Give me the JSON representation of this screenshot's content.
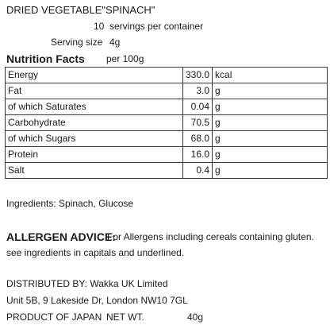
{
  "product_title": "DRIED VEGETABLE\"SPINACH\"",
  "servings": {
    "count": "10",
    "label": "servings per container"
  },
  "serving_size": {
    "label": "Serving size",
    "value": "4g"
  },
  "nutrition": {
    "heading": "Nutrition Facts",
    "per": "per 100g",
    "rows": [
      {
        "name": "Energy",
        "value": "330.0",
        "unit": "kcal"
      },
      {
        "name": "Fat",
        "value": "3.0",
        "unit": "g"
      },
      {
        "name": "of which Saturates",
        "value": "0.04",
        "unit": "g"
      },
      {
        "name": "Carbohydrate",
        "value": "70.5",
        "unit": "g"
      },
      {
        "name": "of which Sugars",
        "value": "68.0",
        "unit": "g"
      },
      {
        "name": "Protein",
        "value": "16.0",
        "unit": "g"
      },
      {
        "name": "Salt",
        "value": "0.4",
        "unit": "g"
      }
    ]
  },
  "ingredients": "Ingredients: Spinach, Glucose",
  "allergen": {
    "heading": "ALLERGEN ADVICE:",
    "line1": "For Allergens including cereals containing gluten.",
    "line2": "see ingredients in capitals and underlined."
  },
  "distribution": {
    "line1": "DISTRIBUTED BY:  Wakka UK Limited",
    "line2": "Unit 5B, 9 Lakeside Dr, London NW10 7GL"
  },
  "footer": {
    "origin": "PRODUCT OF JAPAN",
    "net_label": "NET WT.",
    "net_value": "40g"
  }
}
